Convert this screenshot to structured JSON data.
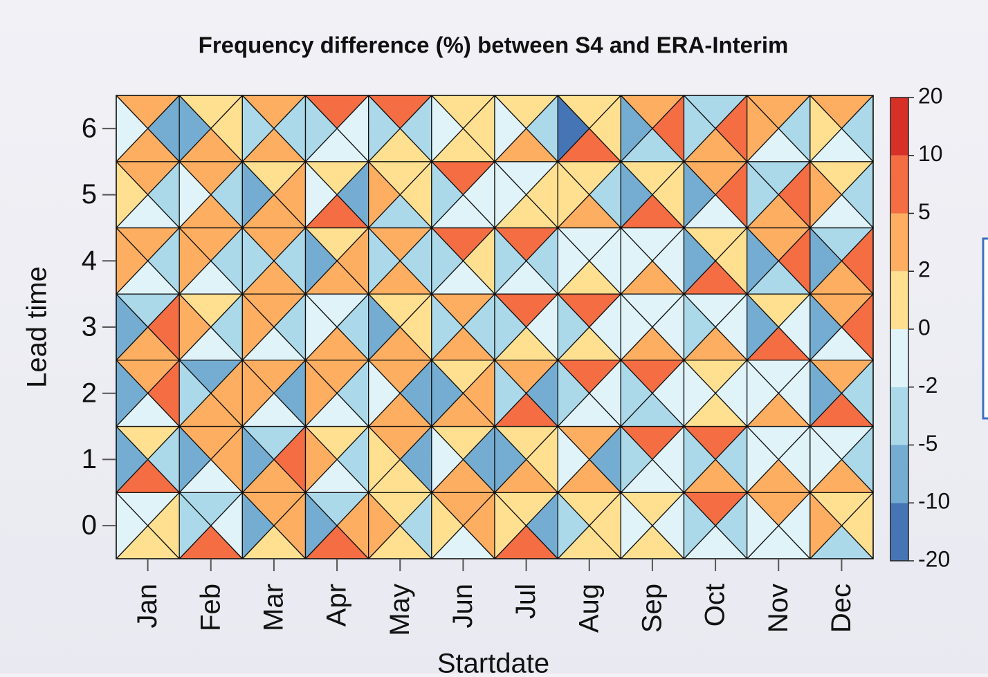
{
  "chart_data": {
    "type": "triangle-heatmap",
    "title": "Frequency difference (%) between S4 and ERA-Interim",
    "xlabel": "Startdate",
    "ylabel": "Lead time",
    "categories": [
      "Jan",
      "Feb",
      "Mar",
      "Apr",
      "May",
      "Jun",
      "Jul",
      "Aug",
      "Sep",
      "Oct",
      "Nov",
      "Dec"
    ],
    "ylim": [
      -0.5,
      6.5
    ],
    "yticks": [
      0,
      1,
      2,
      3,
      4,
      5,
      6
    ],
    "levels": [
      -20,
      -10,
      -5,
      -2,
      0,
      2,
      5,
      10,
      20
    ],
    "colors": [
      "#4575b4",
      "#74add1",
      "#abd9e9",
      "#e0f3f8",
      "#fee090",
      "#fdae61",
      "#f46d43",
      "#d73027"
    ],
    "values": [
      [
        [
          -1,
          1,
          1,
          -1
        ],
        [
          -3,
          -1,
          7,
          -3
        ],
        [
          3,
          3,
          1,
          -7
        ],
        [
          -3,
          3,
          7,
          -7
        ],
        [
          1,
          -3,
          1,
          3
        ],
        [
          3,
          3,
          -1,
          1
        ],
        [
          1,
          -7,
          7,
          1
        ],
        [
          1,
          1,
          1,
          -3
        ],
        [
          1,
          -1,
          1,
          -1
        ],
        [
          7,
          -3,
          -1,
          -3
        ],
        [
          3,
          -1,
          -1,
          -1
        ],
        [
          1,
          1,
          -3,
          3
        ]
      ],
      [
        [
          1,
          -3,
          7,
          -7
        ],
        [
          3,
          3,
          -1,
          -7
        ],
        [
          -3,
          7,
          3,
          -7
        ],
        [
          1,
          -3,
          -1,
          3
        ],
        [
          3,
          -7,
          1,
          1
        ],
        [
          1,
          -7,
          3,
          -1
        ],
        [
          1,
          1,
          3,
          -7
        ],
        [
          3,
          -7,
          3,
          -1
        ],
        [
          7,
          -1,
          -1,
          -3
        ],
        [
          7,
          -3,
          3,
          -3
        ],
        [
          -1,
          -1,
          3,
          -1
        ],
        [
          -1,
          -3,
          3,
          -1
        ]
      ],
      [
        [
          3,
          7,
          -1,
          -7
        ],
        [
          -7,
          3,
          3,
          -3
        ],
        [
          3,
          -7,
          -1,
          3
        ],
        [
          3,
          -3,
          -1,
          3
        ],
        [
          3,
          -7,
          3,
          -1
        ],
        [
          1,
          3,
          3,
          -7
        ],
        [
          3,
          -7,
          7,
          -3
        ],
        [
          7,
          -1,
          -1,
          -3
        ],
        [
          7,
          -1,
          -3,
          -3
        ],
        [
          1,
          -1,
          1,
          -1
        ],
        [
          -1,
          -1,
          3,
          -1
        ],
        [
          3,
          -3,
          7,
          -7
        ]
      ],
      [
        [
          -3,
          7,
          3,
          -7
        ],
        [
          1,
          -3,
          -1,
          3
        ],
        [
          3,
          -3,
          -1,
          3
        ],
        [
          -1,
          -3,
          3,
          -1
        ],
        [
          1,
          1,
          3,
          -7
        ],
        [
          3,
          -3,
          3,
          -3
        ],
        [
          7,
          -1,
          1,
          -3
        ],
        [
          7,
          -1,
          1,
          -3
        ],
        [
          -1,
          -1,
          3,
          -1
        ],
        [
          -1,
          -1,
          3,
          -3
        ],
        [
          1,
          -1,
          7,
          -7
        ],
        [
          3,
          7,
          -1,
          -7
        ]
      ],
      [
        [
          3,
          -3,
          -1,
          3
        ],
        [
          3,
          -3,
          -1,
          3
        ],
        [
          3,
          -3,
          3,
          -3
        ],
        [
          1,
          3,
          3,
          -7
        ],
        [
          3,
          -3,
          3,
          -3
        ],
        [
          7,
          1,
          -1,
          -3
        ],
        [
          7,
          -3,
          -1,
          -3
        ],
        [
          -1,
          -1,
          1,
          -1
        ],
        [
          -1,
          -1,
          3,
          -1
        ],
        [
          1,
          1,
          7,
          -7
        ],
        [
          3,
          7,
          -3,
          -7
        ],
        [
          -3,
          7,
          3,
          -7
        ]
      ],
      [
        [
          3,
          -3,
          -1,
          1
        ],
        [
          3,
          -3,
          3,
          -1
        ],
        [
          1,
          3,
          3,
          -7
        ],
        [
          1,
          -7,
          7,
          -1
        ],
        [
          1,
          1,
          -3,
          3
        ],
        [
          7,
          -1,
          -1,
          -3
        ],
        [
          -1,
          1,
          1,
          -1
        ],
        [
          1,
          -3,
          3,
          1
        ],
        [
          1,
          1,
          7,
          -7
        ],
        [
          3,
          7,
          -1,
          -7
        ],
        [
          -3,
          7,
          3,
          -3
        ],
        [
          1,
          -3,
          -1,
          3
        ]
      ],
      [
        [
          3,
          -7,
          3,
          -1
        ],
        [
          1,
          1,
          3,
          -7
        ],
        [
          3,
          -3,
          3,
          -3
        ],
        [
          7,
          -1,
          -1,
          -3
        ],
        [
          7,
          -3,
          1,
          -3
        ],
        [
          1,
          1,
          1,
          -1
        ],
        [
          1,
          -3,
          3,
          -1
        ],
        [
          1,
          1,
          7,
          -15
        ],
        [
          3,
          7,
          -3,
          -7
        ],
        [
          -3,
          7,
          3,
          -3
        ],
        [
          3,
          -3,
          -1,
          3
        ],
        [
          3,
          -3,
          -1,
          1
        ]
      ]
    ]
  }
}
